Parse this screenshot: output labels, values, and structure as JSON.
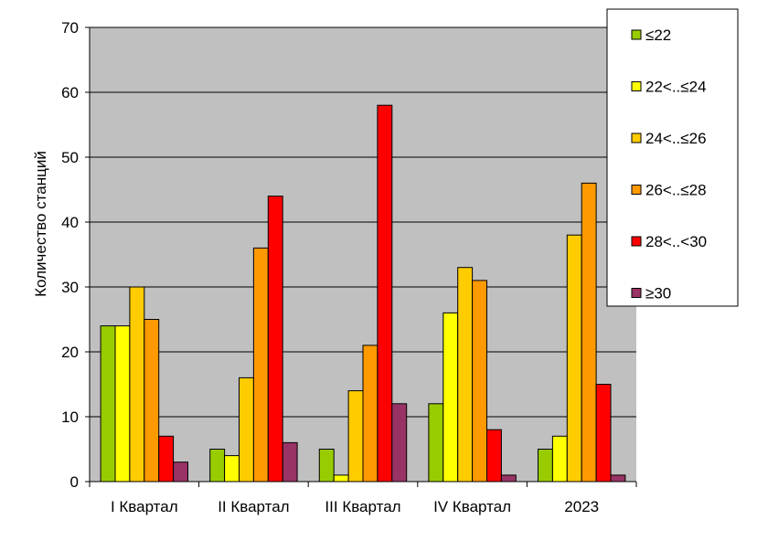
{
  "chart_data": {
    "type": "bar",
    "ylabel": "Количество станций",
    "xlabel": "",
    "ylim": [
      0,
      70
    ],
    "ytick_step": 10,
    "grid": true,
    "plot_background": "#C0C0C0",
    "legend_position": "right",
    "categories": [
      "I Квартал",
      "II Квартал",
      "III Квартал",
      "IV Квартал",
      "2023"
    ],
    "series": [
      {
        "name": "≤22",
        "color": "#99CC00",
        "values": [
          24,
          5,
          5,
          12,
          5
        ]
      },
      {
        "name": "22<..≤24",
        "color": "#FFFF00",
        "values": [
          24,
          4,
          1,
          26,
          7
        ]
      },
      {
        "name": "24<..≤26",
        "color": "#FFCC00",
        "values": [
          30,
          16,
          14,
          33,
          38
        ]
      },
      {
        "name": "26<..≤28",
        "color": "#FF9900",
        "values": [
          25,
          36,
          21,
          31,
          46
        ]
      },
      {
        "name": "28<..<30",
        "color": "#FF0000",
        "values": [
          7,
          44,
          58,
          8,
          15
        ]
      },
      {
        "name": "≥30",
        "color": "#993366",
        "values": [
          3,
          6,
          12,
          1,
          1
        ]
      }
    ]
  }
}
